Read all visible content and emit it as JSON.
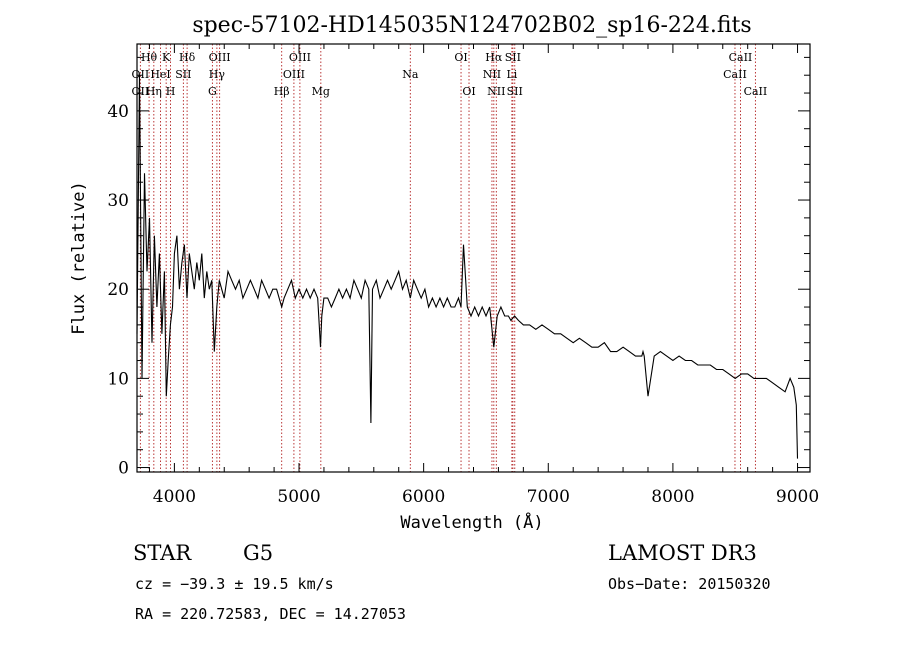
{
  "chart_data": {
    "type": "line",
    "title": "spec-57102-HD145035N124702B02_sp16-224.fits",
    "xlabel": "Wavelength (Å)",
    "ylabel": "Flux (relative)",
    "xlim": [
      3700,
      9100
    ],
    "ylim": [
      -0.5,
      47.5
    ],
    "xticks": [
      4000,
      5000,
      6000,
      7000,
      8000,
      9000
    ],
    "xtick_labels": [
      "4000",
      "5000",
      "6000",
      "7000",
      "8000",
      "9000"
    ],
    "yticks": [
      0,
      10,
      20,
      30,
      40
    ],
    "ytick_labels": [
      "0",
      "10",
      "20",
      "30",
      "40"
    ],
    "grid": false,
    "series": [
      {
        "name": "spectrum",
        "x": [
          3700,
          3720,
          3740,
          3760,
          3780,
          3800,
          3820,
          3840,
          3860,
          3880,
          3900,
          3920,
          3935,
          3950,
          3968,
          3985,
          4000,
          4020,
          4040,
          4060,
          4080,
          4101,
          4120,
          4140,
          4160,
          4180,
          4200,
          4220,
          4240,
          4260,
          4280,
          4300,
          4320,
          4340,
          4360,
          4380,
          4400,
          4430,
          4460,
          4490,
          4520,
          4550,
          4580,
          4610,
          4640,
          4670,
          4700,
          4730,
          4760,
          4790,
          4820,
          4861,
          4880,
          4910,
          4940,
          4970,
          5000,
          5030,
          5060,
          5090,
          5120,
          5150,
          5172,
          5183,
          5200,
          5230,
          5260,
          5290,
          5320,
          5350,
          5380,
          5410,
          5440,
          5470,
          5500,
          5530,
          5560,
          5577,
          5590,
          5620,
          5650,
          5680,
          5710,
          5740,
          5770,
          5800,
          5830,
          5860,
          5893,
          5920,
          5950,
          5980,
          6010,
          6040,
          6070,
          6100,
          6130,
          6160,
          6190,
          6220,
          6250,
          6280,
          6300,
          6320,
          6350,
          6380,
          6410,
          6440,
          6470,
          6500,
          6530,
          6563,
          6590,
          6620,
          6650,
          6680,
          6700,
          6730,
          6760,
          6800,
          6850,
          6900,
          6950,
          7000,
          7050,
          7100,
          7150,
          7200,
          7250,
          7300,
          7350,
          7400,
          7450,
          7500,
          7550,
          7600,
          7650,
          7700,
          7750,
          7760,
          7770,
          7800,
          7850,
          7900,
          7950,
          8000,
          8050,
          8100,
          8150,
          8200,
          8250,
          8300,
          8350,
          8400,
          8450,
          8500,
          8550,
          8600,
          8650,
          8700,
          8750,
          8800,
          8850,
          8900,
          8940,
          8970,
          8990,
          9000
        ],
        "y": [
          15,
          44,
          10,
          33,
          22,
          28,
          14,
          26,
          18,
          24,
          15,
          22,
          8,
          12,
          16,
          18,
          24,
          26,
          20,
          23,
          25,
          19,
          24,
          22,
          20,
          23,
          21,
          24,
          19,
          22,
          20,
          21,
          13,
          18,
          21,
          20,
          19,
          22,
          21,
          20,
          21,
          19,
          20,
          21,
          20,
          19,
          21,
          20,
          19,
          20,
          20,
          18,
          19,
          20,
          21,
          19,
          20,
          19,
          20,
          19,
          20,
          19,
          13.5,
          17,
          19,
          19,
          18,
          19,
          20,
          19,
          20,
          19,
          21,
          20,
          19,
          21,
          20,
          5,
          20,
          21,
          19,
          20,
          21,
          20,
          21,
          22,
          20,
          21,
          19,
          21,
          20,
          19,
          20,
          18,
          19,
          18,
          19,
          18,
          19,
          18,
          18,
          19,
          18,
          25,
          18,
          17,
          18,
          17,
          18,
          17,
          18,
          13.5,
          17,
          18,
          17,
          17,
          16.5,
          17,
          16.5,
          16,
          16,
          15.5,
          16,
          15.5,
          15,
          15,
          14.5,
          14,
          14.5,
          14,
          13.5,
          13.5,
          14,
          13,
          13,
          13.5,
          13,
          12.5,
          12.5,
          13,
          12.5,
          8,
          12.5,
          13,
          12.5,
          12,
          12.5,
          12,
          12,
          11.5,
          11.5,
          11.5,
          11,
          11,
          10.5,
          10,
          10.5,
          10.5,
          10,
          10,
          10,
          9.5,
          9,
          8.5,
          10,
          9,
          7,
          1
        ]
      }
    ],
    "spectral_lines": [
      {
        "label": "OII",
        "wavelength": 3727,
        "row": 2
      },
      {
        "label": "Hθ",
        "wavelength": 3797,
        "row": 0
      },
      {
        "label": "OII",
        "wavelength": 3727,
        "row": 1
      },
      {
        "label": "Hη",
        "wavelength": 3835,
        "row": 2
      },
      {
        "label": "K",
        "wavelength": 3934,
        "row": 0
      },
      {
        "label": "HeI",
        "wavelength": 3889,
        "row": 1
      },
      {
        "label": "SII",
        "wavelength": 4072,
        "row": 1
      },
      {
        "label": "H",
        "wavelength": 3969,
        "row": 2
      },
      {
        "label": "Hδ",
        "wavelength": 4102,
        "row": 0
      },
      {
        "label": "OIII",
        "wavelength": 4363,
        "row": 0
      },
      {
        "label": "Hγ",
        "wavelength": 4341,
        "row": 1
      },
      {
        "label": "G",
        "wavelength": 4305,
        "row": 2
      },
      {
        "label": "OIII",
        "wavelength": 5007,
        "row": 0
      },
      {
        "label": "OIII",
        "wavelength": 4959,
        "row": 1
      },
      {
        "label": "Hβ",
        "wavelength": 4861,
        "row": 2
      },
      {
        "label": "Mg",
        "wavelength": 5175,
        "row": 2
      },
      {
        "label": "Na",
        "wavelength": 5893,
        "row": 1
      },
      {
        "label": "OI",
        "wavelength": 6300,
        "row": 0
      },
      {
        "label": "OI",
        "wavelength": 6364,
        "row": 2
      },
      {
        "label": "Hα",
        "wavelength": 6563,
        "row": 0
      },
      {
        "label": "SII",
        "wavelength": 6716,
        "row": 0
      },
      {
        "label": "NII",
        "wavelength": 6548,
        "row": 1
      },
      {
        "label": "Li",
        "wavelength": 6708,
        "row": 1
      },
      {
        "label": "NII",
        "wavelength": 6583,
        "row": 2
      },
      {
        "label": "SII",
        "wavelength": 6731,
        "row": 2
      },
      {
        "label": "CaII",
        "wavelength": 8542,
        "row": 0
      },
      {
        "label": "CaII",
        "wavelength": 8498,
        "row": 1
      },
      {
        "label": "CaII",
        "wavelength": 8662,
        "row": 2
      }
    ],
    "line_marker_wavelengths": [
      3727,
      3797,
      3835,
      3889,
      3934,
      3969,
      4072,
      4102,
      4305,
      4341,
      4363,
      4861,
      4959,
      5007,
      5175,
      5893,
      6300,
      6364,
      6548,
      6563,
      6583,
      6708,
      6716,
      6731,
      8498,
      8542,
      8662
    ]
  },
  "info": {
    "object_type": "STAR",
    "subclass": "G5",
    "survey": "LAMOST DR3",
    "redshift": "cz = −39.3 ± 19.5 km/s",
    "obs_date": "Obs−Date: 20150320",
    "coords": "RA = 220.72583, DEC =  14.27053"
  },
  "colors": {
    "spectrum": "#000000",
    "line_markers": "#b22222",
    "axes": "#000000"
  }
}
